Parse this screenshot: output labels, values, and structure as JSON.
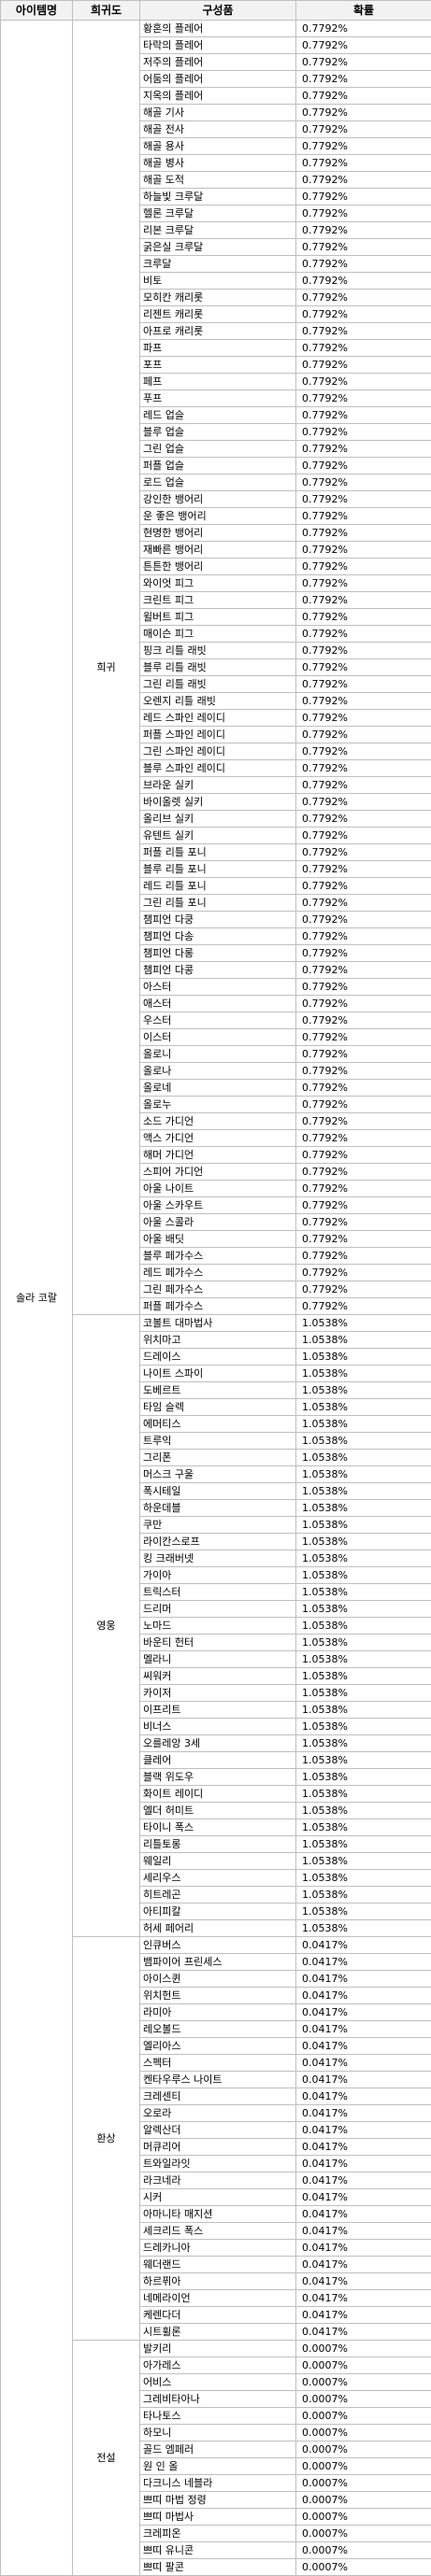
{
  "headers": [
    "아이템명",
    "희귀도",
    "구성품",
    "확률"
  ],
  "item_name": "솔라 코랄",
  "groups": [
    {
      "rarity": "희귀",
      "probability": "0.7792%",
      "items": [
        "황혼의 플레어",
        "타락의 플레어",
        "저주의 플레어",
        "어둠의 플레어",
        "지옥의 플레어",
        "해골 기사",
        "해골 전사",
        "해골 용사",
        "해골 병사",
        "해골 도적",
        "하늘빛 크루달",
        "헬론 크루달",
        "리본 크루달",
        "굵은실 크루달",
        "크루달",
        "비토",
        "모히칸 캐리롯",
        "리젠트 캐리롯",
        "아프로 캐리롯",
        "파프",
        "포프",
        "페프",
        "푸프",
        "레드 업슬",
        "블루 업슬",
        "그린 업슬",
        "퍼플 업슬",
        "로드 업슬",
        "강인한 뱅어리",
        "운 좋은 뱅어리",
        "현명한 뱅어리",
        "재빠른 뱅어리",
        "튼튼한 뱅어리",
        "와이엇 피그",
        "크린트 피그",
        "윌버트 피그",
        "매이슨 피그",
        "핑크 리틀 래빗",
        "블루 리틀 래빗",
        "그린 리틀 래빗",
        "오렌지 리틀 래빗",
        "레드 스파인 레이디",
        "퍼플 스파인 레이디",
        "그린 스파인 레이디",
        "블루 스파인 레이디",
        "브라운 실키",
        "바이올렛 실키",
        "올리브 실키",
        "유텐트 실키",
        "퍼플 리틀 포니",
        "블루 리틀 포니",
        "레드 리틀 포니",
        "그린 리틀 포니",
        "챔피언 다쿵",
        "챔피언 다송",
        "챔피언 다롱",
        "챔피언 다콩",
        "아스터",
        "애스터",
        "우스터",
        "이스터",
        "올로니",
        "올로나",
        "올로네",
        "올로누",
        "소드 가디언",
        "액스 가디언",
        "해머 가디언",
        "스피어 가디언",
        "아울 나이트",
        "아울 스카우트",
        "아울 스콜라",
        "아울 배딧",
        "블루 페가수스",
        "레드 페가수스",
        "그린 페가수스",
        "퍼플 페가수스"
      ]
    },
    {
      "rarity": "영웅",
      "probability": "1.0538%",
      "items": [
        "코볼트 대마법사",
        "위치마고",
        "드레이스",
        "나이트 스파이",
        "도베르트",
        "타임 슬렉",
        "에머티스",
        "트루익",
        "그리폰",
        "머스크 구울",
        "폭시테일",
        "하운데블",
        "쿠만",
        "라이칸스로프",
        "킹 크래버넷",
        "가이아",
        "트릭스터",
        "드리머",
        "노마드",
        "바운티 헌터",
        "멜라니",
        "씨워커",
        "카이저",
        "이프리트",
        "비너스",
        "오를레앙 3세",
        "클레어",
        "블랙 위도우",
        "화이트 레이디",
        "엘더 허미트",
        "타이니 폭스",
        "리틀토롱",
        "웨일리",
        "세리우스",
        "히트레곤",
        "아티피칼",
        "허세 페어리"
      ]
    },
    {
      "rarity": "환상",
      "probability": "0.0417%",
      "items": [
        "인큐버스",
        "뱀파이어 프린세스",
        "아이스퀸",
        "위치헌트",
        "라미아",
        "레오볼드",
        "엘리아스",
        "스펙터",
        "켄타우루스 나이트",
        "크레센티",
        "오로라",
        "알렉산더",
        "머큐리어",
        "트와일라잇",
        "라크네라",
        "시커",
        "아마니타 매지션",
        "세크리드 폭스",
        "드레카니아",
        "웨더랜드",
        "하르퓌아",
        "네메라이언",
        "케렌다더",
        "시트휠론"
      ]
    },
    {
      "rarity": "전설",
      "probability": "0.0007%",
      "items": [
        "발키리",
        "아가레스",
        "어비스",
        "그레비타아나",
        "타나토스",
        "하모니",
        "골드 엠페러",
        "원 인 올",
        "다크니스 네블라",
        "쁘띠 마법 정령",
        "쁘띠 마법사",
        "크레피온",
        "쁘띠 유니콘",
        "쁘띠 팔콘"
      ]
    }
  ]
}
